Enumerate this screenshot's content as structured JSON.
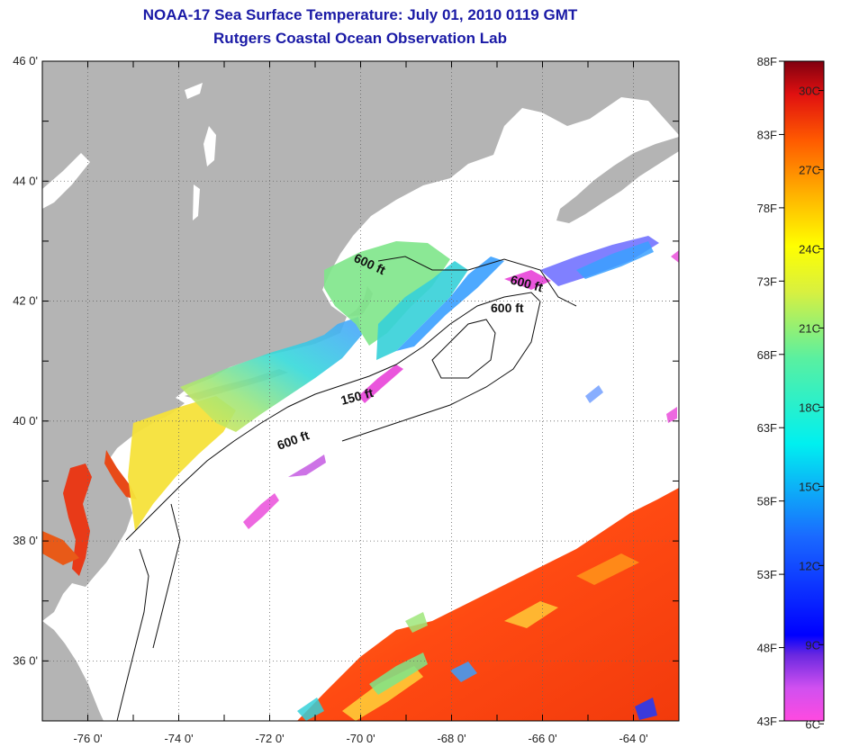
{
  "title": "NOAA-17 Sea Surface Temperature:  July 01, 2010 0119 GMT",
  "subtitle": "Rutgers Coastal Ocean Observation Lab",
  "map": {
    "lat_ticks": [
      "46 0'",
      "44 0'",
      "42 0'",
      "40 0'",
      "38 0'",
      "36 0'"
    ],
    "lon_ticks": [
      "-76 0'",
      "-74 0'",
      "-72 0'",
      "-70 0'",
      "-68 0'",
      "-66 0'",
      "-64 0'"
    ],
    "lat_range": [
      35,
      46
    ],
    "lon_range": [
      -77,
      -63
    ],
    "gridlines": "dotted",
    "contour_labels": [
      "600 ft",
      "600 ft",
      "600 ft",
      "150 ft",
      "600 ft"
    ],
    "land_color": "#b4b4b4",
    "cloud_color": "#ffffff"
  },
  "colorbar": {
    "fahrenheit_labels": [
      "88F",
      "83F",
      "78F",
      "73F",
      "68F",
      "63F",
      "58F",
      "53F",
      "48F",
      "43F"
    ],
    "celsius_labels": [
      "30C",
      "27C",
      "24C",
      "21C",
      "18C",
      "15C",
      "12C",
      "9C",
      "6C"
    ],
    "range_f": [
      43,
      88
    ],
    "range_c": [
      6,
      31
    ]
  }
}
